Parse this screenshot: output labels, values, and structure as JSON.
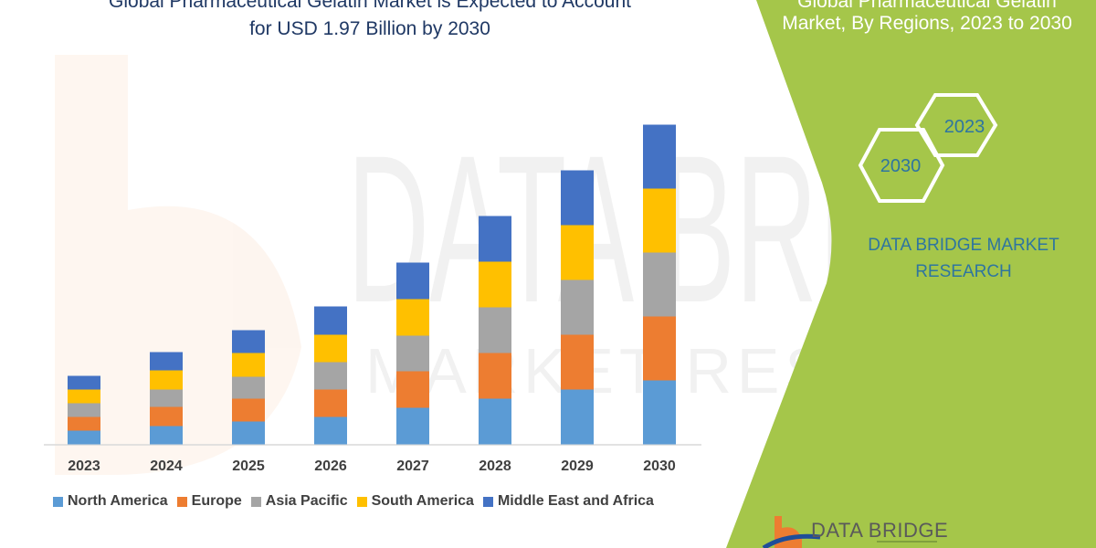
{
  "header": {
    "title_line1": "Global Pharmaceutical Gelatin Market is Expected to Account",
    "title_line2": "for USD 1.97 Billion by 2030"
  },
  "side_panel": {
    "title_line1": "Global Pharmaceutical Gelatin",
    "title_line2": "Market, By Regions, 2023 to 2030",
    "hexagon_start": "2023",
    "hexagon_end": "2030",
    "brand_line1": "DATA BRIDGE MARKET",
    "brand_line2": "RESEARCH",
    "panel_color": "#a5c64a"
  },
  "watermark": {
    "line1": "DATA BRIDGE",
    "line2": "MARKET RESEARCH"
  },
  "logo": {
    "text": "DATA BRIDGE"
  },
  "chart_data": {
    "type": "bar",
    "stacked": true,
    "categories": [
      "2023",
      "2024",
      "2025",
      "2026",
      "2027",
      "2028",
      "2029",
      "2030"
    ],
    "series": [
      {
        "name": "North America",
        "color": "#5b9bd5",
        "values": [
          15,
          20,
          25,
          30,
          40,
          50,
          60,
          70
        ]
      },
      {
        "name": "Europe",
        "color": "#ed7d31",
        "values": [
          15,
          21,
          25,
          30,
          40,
          50,
          60,
          70
        ]
      },
      {
        "name": "Asia Pacific",
        "color": "#a5a5a5",
        "values": [
          15,
          19,
          24,
          30,
          39,
          50,
          60,
          70
        ]
      },
      {
        "name": "South America",
        "color": "#ffc000",
        "values": [
          15,
          21,
          26,
          30,
          40,
          50,
          60,
          70
        ]
      },
      {
        "name": "Middle East and Africa",
        "color": "#4472c4",
        "values": [
          15,
          20,
          25,
          31,
          40,
          50,
          60,
          70
        ]
      }
    ],
    "ylim": [
      0,
      360
    ],
    "y_axis_visible": false,
    "grid": false,
    "legend_position": "bottom"
  }
}
